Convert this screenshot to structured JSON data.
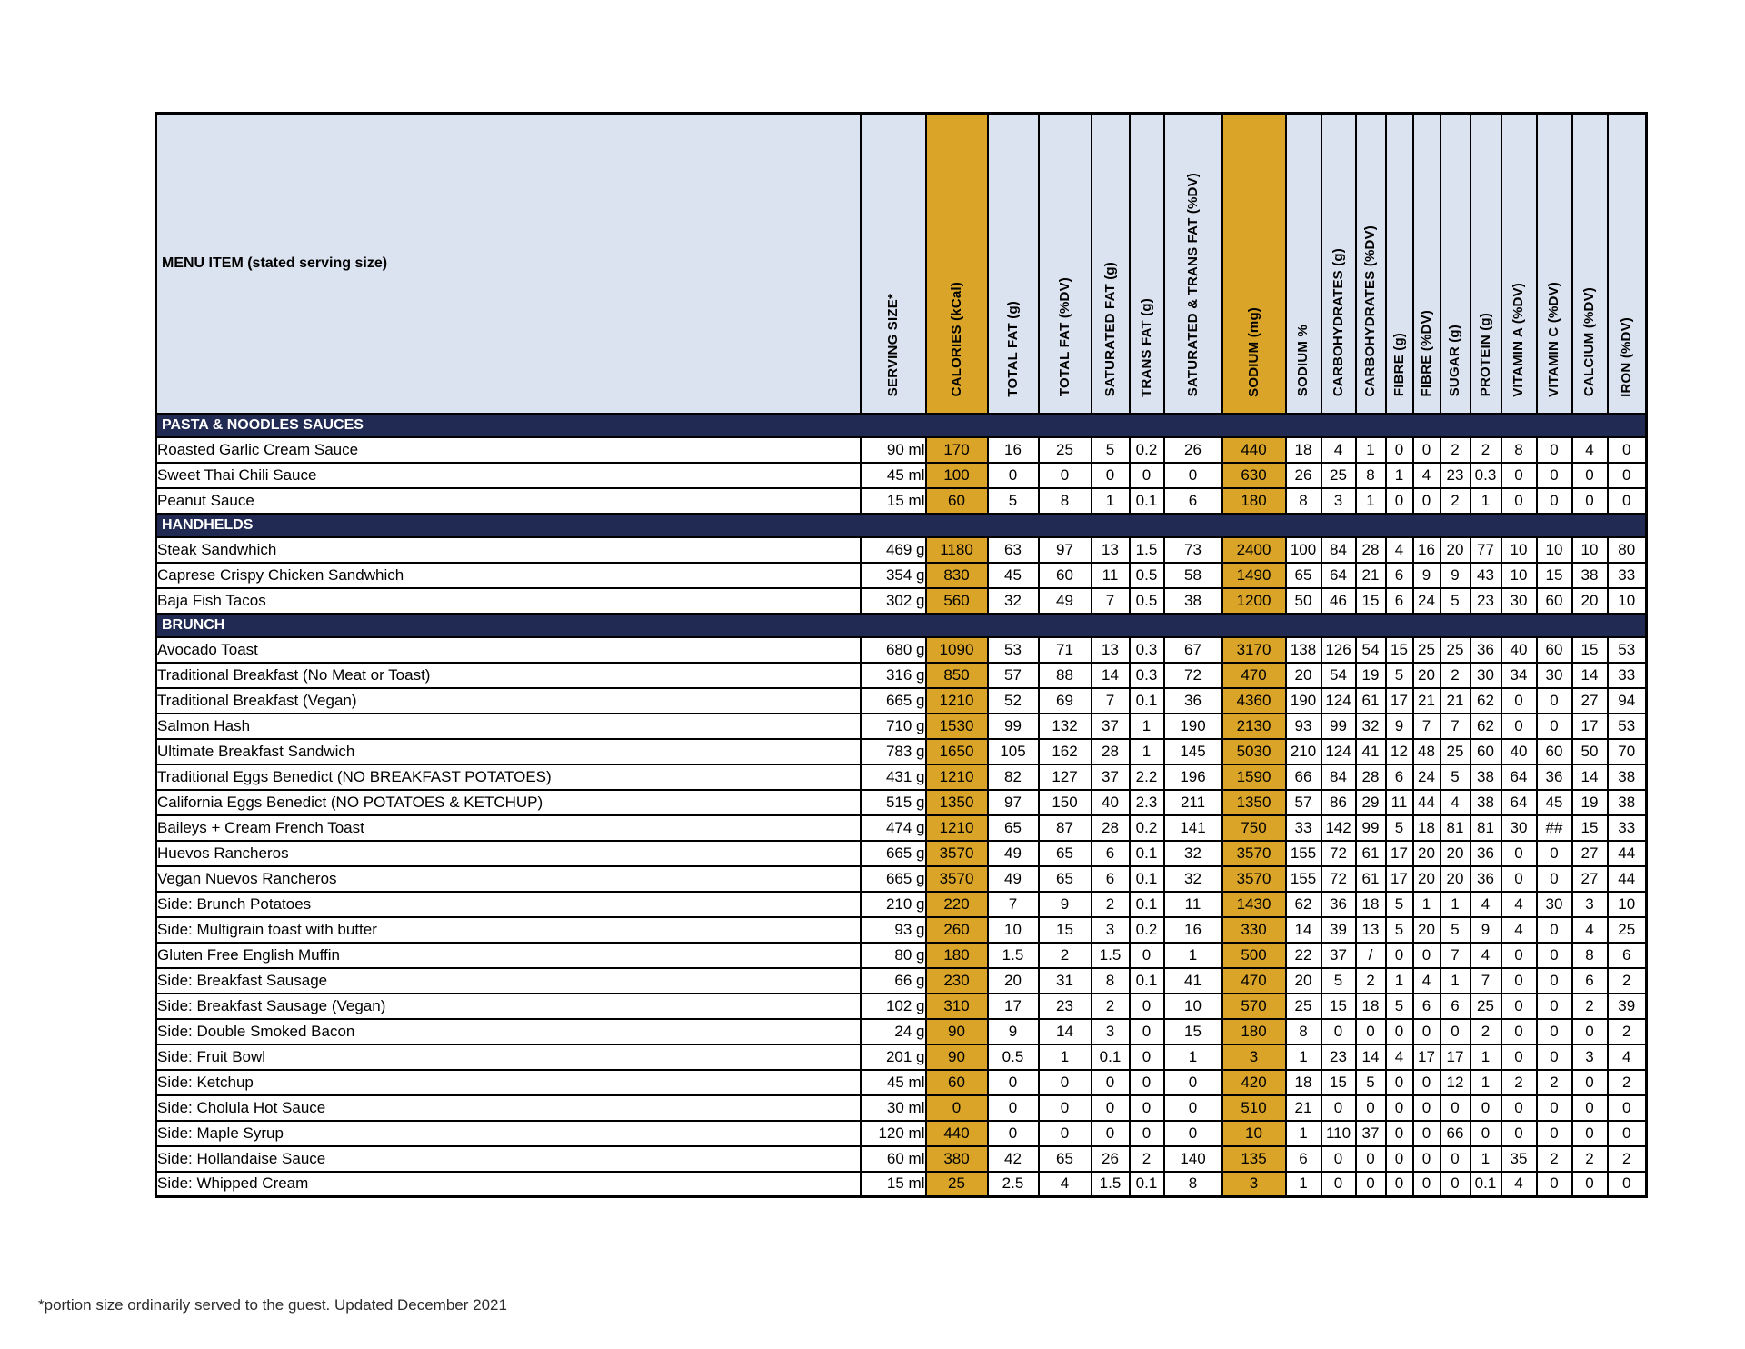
{
  "table": {
    "menu_item_header": "MENU ITEM (stated serving size)",
    "columns": [
      "SERVING SIZE*",
      "CALORIES (kCal)",
      "TOTAL FAT (g)",
      "TOTAL FAT (%DV)",
      "SATURATED FAT (g)",
      "TRANS FAT (g)",
      "SATURATED & TRANS FAT (%DV)",
      "SODIUM (mg)",
      "SODIUM %",
      "CARBOHYDRATES (g)",
      "CARBOHYDRATES (%DV)",
      "FIBRE (g)",
      "FIBRE (%DV)",
      "SUGAR (g)",
      "PROTEIN (g)",
      "VITAMIN A (%DV)",
      "VITAMIN C (%DV)",
      "CALCIUM (%DV)",
      "IRON (%DV)"
    ],
    "accent_column_indexes": [
      1,
      7
    ],
    "sections": [
      {
        "name": "PASTA & NOODLES SAUCES",
        "rows": [
          {
            "item": "Roasted Garlic Cream Sauce",
            "values": [
              "90 ml",
              "170",
              "16",
              "25",
              "5",
              "0.2",
              "26",
              "440",
              "18",
              "4",
              "1",
              "0",
              "0",
              "2",
              "2",
              "8",
              "0",
              "4",
              "0"
            ]
          },
          {
            "item": "Sweet Thai Chili Sauce",
            "values": [
              "45 ml",
              "100",
              "0",
              "0",
              "0",
              "0",
              "0",
              "630",
              "26",
              "25",
              "8",
              "1",
              "4",
              "23",
              "0.3",
              "0",
              "0",
              "0",
              "0"
            ]
          },
          {
            "item": "Peanut Sauce",
            "values": [
              "15 ml",
              "60",
              "5",
              "8",
              "1",
              "0.1",
              "6",
              "180",
              "8",
              "3",
              "1",
              "0",
              "0",
              "2",
              "1",
              "0",
              "0",
              "0",
              "0"
            ]
          }
        ]
      },
      {
        "name": "HANDHELDS",
        "rows": [
          {
            "item": "Steak Sandwhich",
            "values": [
              "469 g",
              "1180",
              "63",
              "97",
              "13",
              "1.5",
              "73",
              "2400",
              "100",
              "84",
              "28",
              "4",
              "16",
              "20",
              "77",
              "10",
              "10",
              "10",
              "80"
            ]
          },
          {
            "item": "Caprese Crispy Chicken Sandwhich",
            "values": [
              "354 g",
              "830",
              "45",
              "60",
              "11",
              "0.5",
              "58",
              "1490",
              "65",
              "64",
              "21",
              "6",
              "9",
              "9",
              "43",
              "10",
              "15",
              "38",
              "33"
            ]
          },
          {
            "item": "Baja Fish Tacos",
            "values": [
              "302 g",
              "560",
              "32",
              "49",
              "7",
              "0.5",
              "38",
              "1200",
              "50",
              "46",
              "15",
              "6",
              "24",
              "5",
              "23",
              "30",
              "60",
              "20",
              "10"
            ]
          }
        ]
      },
      {
        "name": "BRUNCH",
        "rows": [
          {
            "item": "Avocado Toast",
            "values": [
              "680 g",
              "1090",
              "53",
              "71",
              "13",
              "0.3",
              "67",
              "3170",
              "138",
              "126",
              "54",
              "15",
              "25",
              "25",
              "36",
              "40",
              "60",
              "15",
              "53"
            ]
          },
          {
            "item": "Traditional Breakfast (No Meat or Toast)",
            "values": [
              "316 g",
              "850",
              "57",
              "88",
              "14",
              "0.3",
              "72",
              "470",
              "20",
              "54",
              "19",
              "5",
              "20",
              "2",
              "30",
              "34",
              "30",
              "14",
              "33"
            ]
          },
          {
            "item": "Traditional Breakfast (Vegan)",
            "values": [
              "665 g",
              "1210",
              "52",
              "69",
              "7",
              "0.1",
              "36",
              "4360",
              "190",
              "124",
              "61",
              "17",
              "21",
              "21",
              "62",
              "0",
              "0",
              "27",
              "94"
            ]
          },
          {
            "item": "Salmon Hash",
            "values": [
              "710 g",
              "1530",
              "99",
              "132",
              "37",
              "1",
              "190",
              "2130",
              "93",
              "99",
              "32",
              "9",
              "7",
              "7",
              "62",
              "0",
              "0",
              "17",
              "53"
            ]
          },
          {
            "item": "Ultimate Breakfast Sandwich",
            "values": [
              "783 g",
              "1650",
              "105",
              "162",
              "28",
              "1",
              "145",
              "5030",
              "210",
              "124",
              "41",
              "12",
              "48",
              "25",
              "60",
              "40",
              "60",
              "50",
              "70"
            ]
          },
          {
            "item": "Traditional Eggs Benedict   (NO BREAKFAST POTATOES)",
            "values": [
              "431 g",
              "1210",
              "82",
              "127",
              "37",
              "2.2",
              "196",
              "1590",
              "66",
              "84",
              "28",
              "6",
              "24",
              "5",
              "38",
              "64",
              "36",
              "14",
              "38"
            ]
          },
          {
            "item": "California Eggs Benedict  (NO  POTATOES & KETCHUP)",
            "values": [
              "515 g",
              "1350",
              "97",
              "150",
              "40",
              "2.3",
              "211",
              "1350",
              "57",
              "86",
              "29",
              "11",
              "44",
              "4",
              "38",
              "64",
              "45",
              "19",
              "38"
            ]
          },
          {
            "item": "Baileys + Cream French Toast",
            "values": [
              "474 g",
              "1210",
              "65",
              "87",
              "28",
              "0.2",
              "141",
              "750",
              "33",
              "142",
              "99",
              "5",
              "18",
              "81",
              "81",
              "30",
              "##",
              "15",
              "33"
            ]
          },
          {
            "item": "Huevos Rancheros",
            "values": [
              "665 g",
              "3570",
              "49",
              "65",
              "6",
              "0.1",
              "32",
              "3570",
              "155",
              "72",
              "61",
              "17",
              "20",
              "20",
              "36",
              "0",
              "0",
              "27",
              "44"
            ]
          },
          {
            "item": "Vegan Nuevos Rancheros",
            "values": [
              "665 g",
              "3570",
              "49",
              "65",
              "6",
              "0.1",
              "32",
              "3570",
              "155",
              "72",
              "61",
              "17",
              "20",
              "20",
              "36",
              "0",
              "0",
              "27",
              "44"
            ]
          },
          {
            "item": "Side: Brunch Potatoes",
            "values": [
              "210 g",
              "220",
              "7",
              "9",
              "2",
              "0.1",
              "11",
              "1430",
              "62",
              "36",
              "18",
              "5",
              "1",
              "1",
              "4",
              "4",
              "30",
              "3",
              "10"
            ]
          },
          {
            "item": "Side: Multigrain toast with butter",
            "values": [
              "93 g",
              "260",
              "10",
              "15",
              "3",
              "0.2",
              "16",
              "330",
              "14",
              "39",
              "13",
              "5",
              "20",
              "5",
              "9",
              "4",
              "0",
              "4",
              "25"
            ]
          },
          {
            "item": "Gluten Free English Muffin",
            "values": [
              "80 g",
              "180",
              "1.5",
              "2",
              "1.5",
              "0",
              "1",
              "500",
              "22",
              "37",
              "/",
              "0",
              "0",
              "7",
              "4",
              "0",
              "0",
              "8",
              "6"
            ]
          },
          {
            "item": "Side: Breakfast Sausage",
            "values": [
              "66 g",
              "230",
              "20",
              "31",
              "8",
              "0.1",
              "41",
              "470",
              "20",
              "5",
              "2",
              "1",
              "4",
              "1",
              "7",
              "0",
              "0",
              "6",
              "2"
            ]
          },
          {
            "item": "Side: Breakfast Sausage (Vegan)",
            "values": [
              "102 g",
              "310",
              "17",
              "23",
              "2",
              "0",
              "10",
              "570",
              "25",
              "15",
              "18",
              "5",
              "6",
              "6",
              "25",
              "0",
              "0",
              "2",
              "39"
            ]
          },
          {
            "item": "Side: Double Smoked Bacon",
            "values": [
              "24 g",
              "90",
              "9",
              "14",
              "3",
              "0",
              "15",
              "180",
              "8",
              "0",
              "0",
              "0",
              "0",
              "0",
              "2",
              "0",
              "0",
              "0",
              "2"
            ]
          },
          {
            "item": "Side: Fruit Bowl",
            "values": [
              "201 g",
              "90",
              "0.5",
              "1",
              "0.1",
              "0",
              "1",
              "3",
              "1",
              "23",
              "14",
              "4",
              "17",
              "17",
              "1",
              "0",
              "0",
              "3",
              "4"
            ]
          },
          {
            "item": "Side: Ketchup",
            "values": [
              "45 ml",
              "60",
              "0",
              "0",
              "0",
              "0",
              "0",
              "420",
              "18",
              "15",
              "5",
              "0",
              "0",
              "12",
              "1",
              "2",
              "2",
              "0",
              "2"
            ]
          },
          {
            "item": "Side: Cholula Hot Sauce",
            "values": [
              "30 ml",
              "0",
              "0",
              "0",
              "0",
              "0",
              "0",
              "510",
              "21",
              "0",
              "0",
              "0",
              "0",
              "0",
              "0",
              "0",
              "0",
              "0",
              "0"
            ]
          },
          {
            "item": "Side: Maple Syrup",
            "values": [
              "120 ml",
              "440",
              "0",
              "0",
              "0",
              "0",
              "0",
              "10",
              "1",
              "110",
              "37",
              "0",
              "0",
              "66",
              "0",
              "0",
              "0",
              "0",
              "0"
            ]
          },
          {
            "item": "Side: Hollandaise Sauce",
            "values": [
              "60 ml",
              "380",
              "42",
              "65",
              "26",
              "2",
              "140",
              "135",
              "6",
              "0",
              "0",
              "0",
              "0",
              "0",
              "1",
              "35",
              "2",
              "2",
              "2"
            ]
          },
          {
            "item": "Side: Whipped Cream",
            "values": [
              "15 ml",
              "25",
              "2.5",
              "4",
              "1.5",
              "0.1",
              "8",
              "3",
              "1",
              "0",
              "0",
              "0",
              "0",
              "0",
              "0.1",
              "4",
              "0",
              "0",
              "0"
            ]
          }
        ]
      }
    ]
  },
  "footer": "*portion size ordinarily served to the guest. Updated December 2021",
  "colors": {
    "accent_orange": "#d9a427",
    "section_navy": "#212a52",
    "header_blue": "#dce3f0"
  }
}
